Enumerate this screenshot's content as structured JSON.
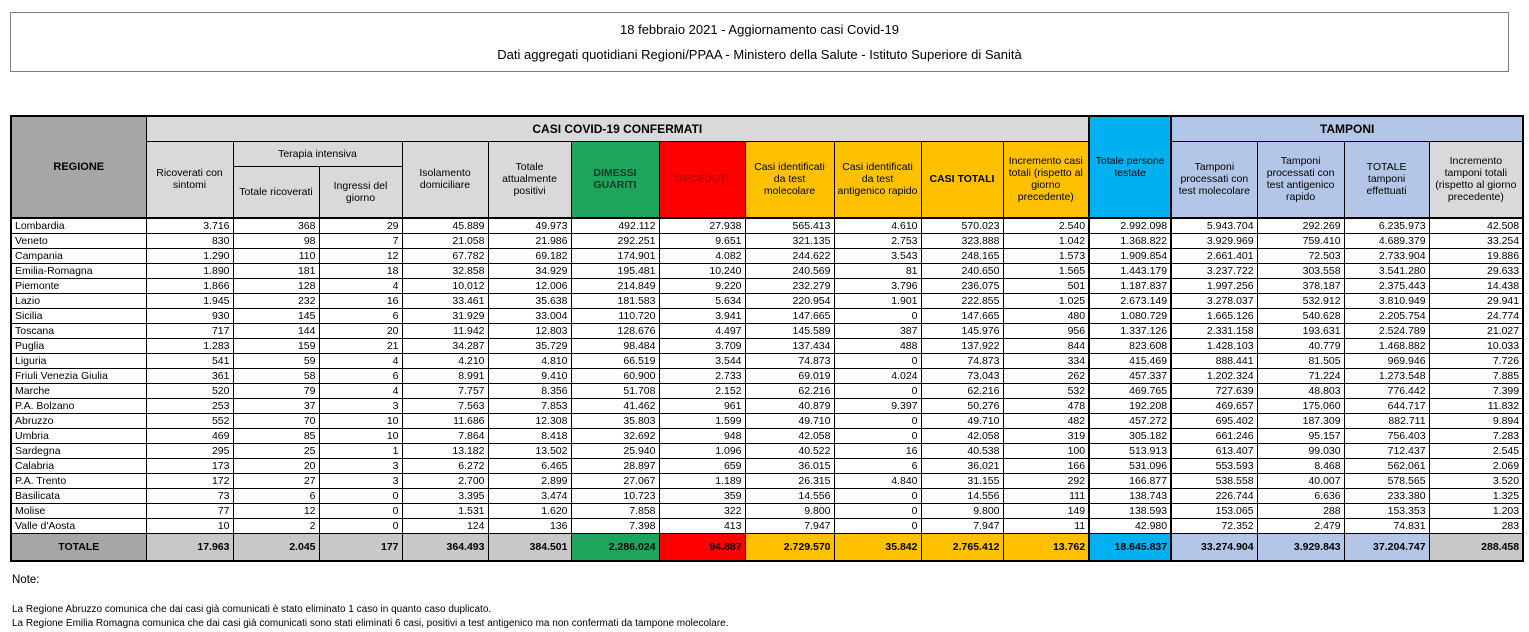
{
  "title": {
    "line1": "18 febbraio 2021 - Aggiornamento casi Covid-19",
    "line2": "Dati aggregati quotidiani Regioni/PPAA - Ministero della Salute - Istituto Superiore di Sanità"
  },
  "colors": {
    "green": "#1FA45C",
    "red": "#FE0000",
    "yellow": "#FFC000",
    "cyan": "#00B0F0",
    "light_blue": "#B4C6E7",
    "header_gray": "#D9D9D9",
    "regione_gray": "#A6A6A6",
    "totale_gray": "#C8C8C8",
    "dimessi_text": "#0E3D22",
    "deceduti_text": "#C00000"
  },
  "table": {
    "headers": {
      "regione": "REGIONE",
      "casi_confermati": "CASI COVID-19 CONFERMATI",
      "ricoverati_sintomi": "Ricoverati con sintomi",
      "terapia_intensiva": "Terapia intensiva",
      "totale_ricoverati": "Totale ricoverati",
      "ingressi_giorno": "Ingressi del giorno",
      "isolamento": "Isolamento domiciliare",
      "attualmente_positivi": "Totale attualmente positivi",
      "dimessi_guariti": "DIMESSI GUARITI",
      "deceduti": "DECEDUTI",
      "casi_molecolare": "Casi identificati da test molecolare",
      "casi_antigenico": "Casi identificati da test antigenico rapido",
      "casi_totali": "CASI TOTALI",
      "incremento_casi": "Incremento casi totali (rispetto al giorno precedente)",
      "persone_testate": "Totale persone testate",
      "tamponi": "TAMPONI",
      "tamponi_molecolare": "Tamponi processati con test molecolare",
      "tamponi_antigenico": "Tamponi processati con test antigenico rapido",
      "tamponi_totale": "TOTALE tamponi effettuati",
      "incremento_tamponi": "Incremento tamponi totali (rispetto al giorno precedente)"
    },
    "rows": [
      {
        "regione": "Lombardia",
        "values": [
          "3.716",
          "368",
          "29",
          "45.889",
          "49.973",
          "492.112",
          "27.938",
          "565.413",
          "4.610",
          "570.023",
          "2.540",
          "2.992.098",
          "5.943.704",
          "292.269",
          "6.235.973",
          "42.508"
        ]
      },
      {
        "regione": "Veneto",
        "values": [
          "830",
          "98",
          "7",
          "21.058",
          "21.986",
          "292.251",
          "9.651",
          "321.135",
          "2.753",
          "323.888",
          "1.042",
          "1.368.822",
          "3.929.969",
          "759.410",
          "4.689.379",
          "33.254"
        ]
      },
      {
        "regione": "Campania",
        "values": [
          "1.290",
          "110",
          "12",
          "67.782",
          "69.182",
          "174.901",
          "4.082",
          "244.622",
          "3.543",
          "248.165",
          "1.573",
          "1.909.854",
          "2.661.401",
          "72.503",
          "2.733.904",
          "19.886"
        ]
      },
      {
        "regione": "Emilia-Romagna",
        "values": [
          "1.890",
          "181",
          "18",
          "32.858",
          "34.929",
          "195.481",
          "10.240",
          "240.569",
          "81",
          "240.650",
          "1.565",
          "1.443.179",
          "3.237.722",
          "303.558",
          "3.541.280",
          "29.633"
        ]
      },
      {
        "regione": "Piemonte",
        "values": [
          "1.866",
          "128",
          "4",
          "10.012",
          "12.006",
          "214.849",
          "9.220",
          "232.279",
          "3.796",
          "236.075",
          "501",
          "1.187.837",
          "1.997.256",
          "378.187",
          "2.375.443",
          "14.438"
        ]
      },
      {
        "regione": "Lazio",
        "values": [
          "1.945",
          "232",
          "16",
          "33.461",
          "35.638",
          "181.583",
          "5.634",
          "220.954",
          "1.901",
          "222.855",
          "1.025",
          "2.673.149",
          "3.278.037",
          "532.912",
          "3.810.949",
          "29.941"
        ]
      },
      {
        "regione": "Sicilia",
        "values": [
          "930",
          "145",
          "6",
          "31.929",
          "33.004",
          "110.720",
          "3.941",
          "147.665",
          "0",
          "147.665",
          "480",
          "1.080.729",
          "1.665.126",
          "540.628",
          "2.205.754",
          "24.774"
        ]
      },
      {
        "regione": "Toscana",
        "values": [
          "717",
          "144",
          "20",
          "11.942",
          "12.803",
          "128.676",
          "4.497",
          "145.589",
          "387",
          "145.976",
          "956",
          "1.337.126",
          "2.331.158",
          "193.631",
          "2.524.789",
          "21.027"
        ]
      },
      {
        "regione": "Puglia",
        "values": [
          "1.283",
          "159",
          "21",
          "34.287",
          "35.729",
          "98.484",
          "3.709",
          "137.434",
          "488",
          "137.922",
          "844",
          "823.608",
          "1.428.103",
          "40.779",
          "1.468.882",
          "10.033"
        ]
      },
      {
        "regione": "Liguria",
        "values": [
          "541",
          "59",
          "4",
          "4.210",
          "4.810",
          "66.519",
          "3.544",
          "74.873",
          "0",
          "74.873",
          "334",
          "415.469",
          "888.441",
          "81.505",
          "969.946",
          "7.726"
        ]
      },
      {
        "regione": "Friuli Venezia Giulia",
        "values": [
          "361",
          "58",
          "6",
          "8.991",
          "9.410",
          "60.900",
          "2.733",
          "69.019",
          "4.024",
          "73.043",
          "262",
          "457.337",
          "1.202.324",
          "71.224",
          "1.273.548",
          "7.885"
        ]
      },
      {
        "regione": "Marche",
        "values": [
          "520",
          "79",
          "4",
          "7.757",
          "8.356",
          "51.708",
          "2.152",
          "62.216",
          "0",
          "62.216",
          "532",
          "469.765",
          "727.639",
          "48.803",
          "776.442",
          "7.399"
        ]
      },
      {
        "regione": "P.A. Bolzano",
        "values": [
          "253",
          "37",
          "3",
          "7.563",
          "7.853",
          "41.462",
          "961",
          "40.879",
          "9.397",
          "50.276",
          "478",
          "192.208",
          "469.657",
          "175.060",
          "644.717",
          "11.832"
        ]
      },
      {
        "regione": "Abruzzo",
        "values": [
          "552",
          "70",
          "10",
          "11.686",
          "12.308",
          "35.803",
          "1.599",
          "49.710",
          "0",
          "49.710",
          "482",
          "457.272",
          "695.402",
          "187.309",
          "882.711",
          "9.894"
        ]
      },
      {
        "regione": "Umbria",
        "values": [
          "469",
          "85",
          "10",
          "7.864",
          "8.418",
          "32.692",
          "948",
          "42.058",
          "0",
          "42.058",
          "319",
          "305.182",
          "661.246",
          "95.157",
          "756.403",
          "7.283"
        ]
      },
      {
        "regione": "Sardegna",
        "values": [
          "295",
          "25",
          "1",
          "13.182",
          "13.502",
          "25.940",
          "1.096",
          "40.522",
          "16",
          "40.538",
          "100",
          "513.913",
          "613.407",
          "99.030",
          "712.437",
          "2.545"
        ]
      },
      {
        "regione": "Calabria",
        "values": [
          "173",
          "20",
          "3",
          "6.272",
          "6.465",
          "28.897",
          "659",
          "36.015",
          "6",
          "36.021",
          "166",
          "531.096",
          "553.593",
          "8.468",
          "562.061",
          "2.069"
        ]
      },
      {
        "regione": "P.A. Trento",
        "values": [
          "172",
          "27",
          "3",
          "2.700",
          "2.899",
          "27.067",
          "1.189",
          "26.315",
          "4.840",
          "31.155",
          "292",
          "166.877",
          "538.558",
          "40.007",
          "578.565",
          "3.520"
        ]
      },
      {
        "regione": "Basilicata",
        "values": [
          "73",
          "6",
          "0",
          "3.395",
          "3.474",
          "10.723",
          "359",
          "14.556",
          "0",
          "14.556",
          "111",
          "138.743",
          "226.744",
          "6.636",
          "233.380",
          "1.325"
        ]
      },
      {
        "regione": "Molise",
        "values": [
          "77",
          "12",
          "0",
          "1.531",
          "1.620",
          "7.858",
          "322",
          "9.800",
          "0",
          "9.800",
          "149",
          "138.593",
          "153.065",
          "288",
          "153.353",
          "1.203"
        ]
      },
      {
        "regione": "Valle d'Aosta",
        "values": [
          "10",
          "2",
          "0",
          "124",
          "136",
          "7.398",
          "413",
          "7.947",
          "0",
          "7.947",
          "11",
          "42.980",
          "72.352",
          "2.479",
          "74.831",
          "283"
        ]
      }
    ],
    "totale": {
      "label": "TOTALE",
      "values": [
        "17.963",
        "2.045",
        "177",
        "364.493",
        "384.501",
        "2.286.024",
        "94.887",
        "2.729.570",
        "35.842",
        "2.765.412",
        "13.762",
        "18.645.837",
        "33.274.904",
        "3.929.843",
        "37.204.747",
        "288.458"
      ]
    }
  },
  "notes": {
    "label": "Note:",
    "lines": [
      "La Regione Abruzzo comunica che dai casi già comunicati è stato eliminato 1 caso in quanto caso duplicato.",
      "La Regione Emilia Romagna comunica che dai casi già comunicati sono stati eliminati 6 casi, positivi a test antigenico ma non confermati da tampone molecolare."
    ]
  }
}
